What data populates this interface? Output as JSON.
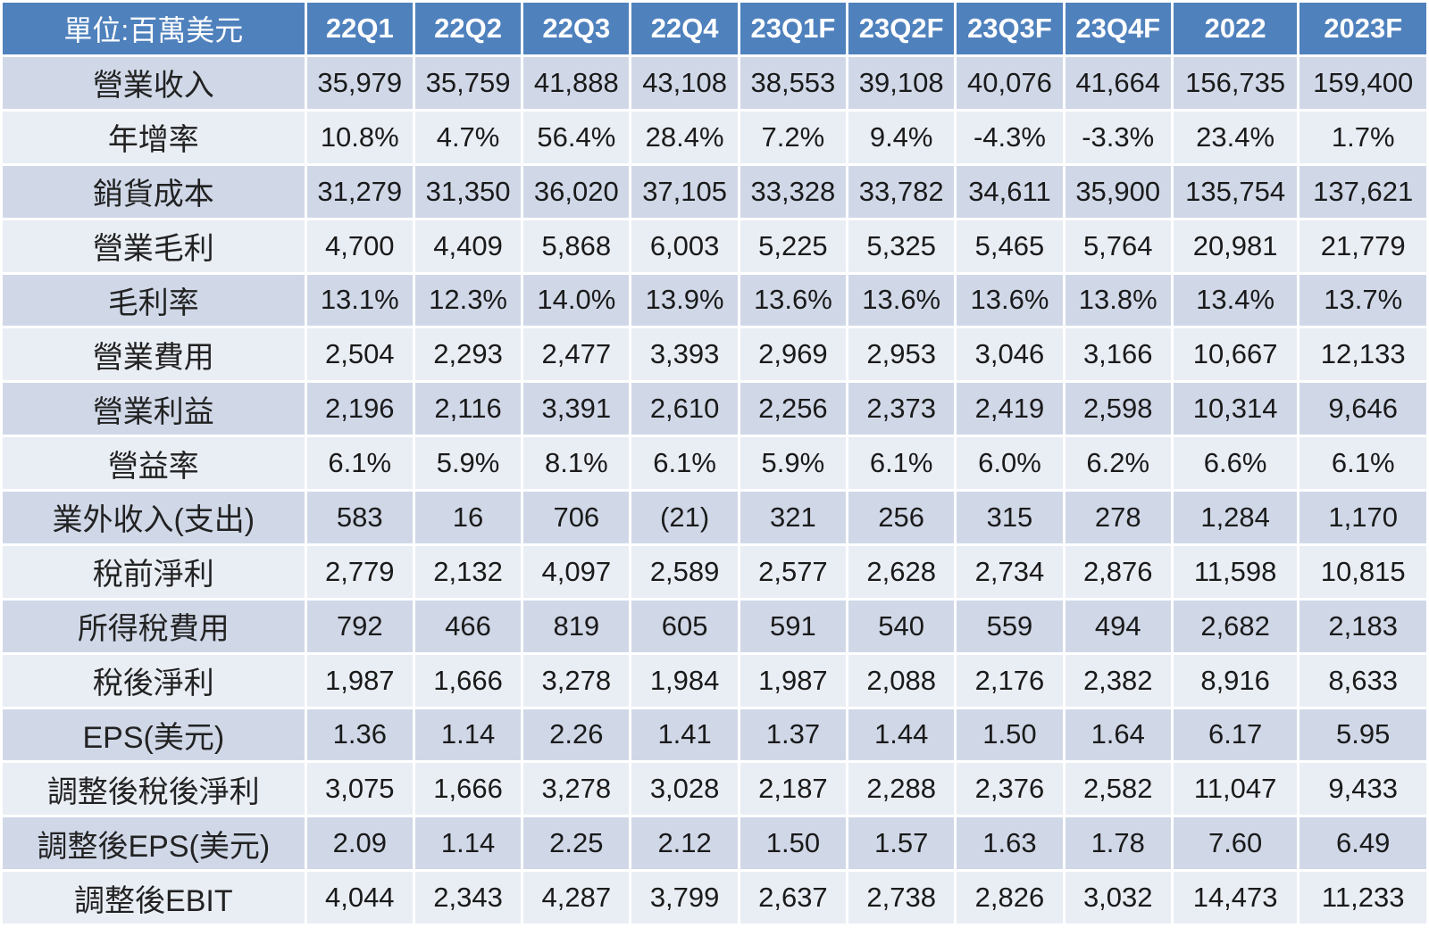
{
  "table": {
    "corner_label": "單位:百萬美元",
    "columns": [
      "22Q1",
      "22Q2",
      "22Q3",
      "22Q4",
      "23Q1F",
      "23Q2F",
      "23Q3F",
      "23Q4F",
      "2022",
      "2023F"
    ],
    "rows": [
      {
        "label": "營業收入",
        "values": [
          "35,979",
          "35,759",
          "41,888",
          "43,108",
          "38,553",
          "39,108",
          "40,076",
          "41,664",
          "156,735",
          "159,400"
        ]
      },
      {
        "label": "年增率",
        "values": [
          "10.8%",
          "4.7%",
          "56.4%",
          "28.4%",
          "7.2%",
          "9.4%",
          "-4.3%",
          "-3.3%",
          "23.4%",
          "1.7%"
        ]
      },
      {
        "label": "銷貨成本",
        "values": [
          "31,279",
          "31,350",
          "36,020",
          "37,105",
          "33,328",
          "33,782",
          "34,611",
          "35,900",
          "135,754",
          "137,621"
        ]
      },
      {
        "label": "營業毛利",
        "values": [
          "4,700",
          "4,409",
          "5,868",
          "6,003",
          "5,225",
          "5,325",
          "5,465",
          "5,764",
          "20,981",
          "21,779"
        ]
      },
      {
        "label": "毛利率",
        "values": [
          "13.1%",
          "12.3%",
          "14.0%",
          "13.9%",
          "13.6%",
          "13.6%",
          "13.6%",
          "13.8%",
          "13.4%",
          "13.7%"
        ]
      },
      {
        "label": "營業費用",
        "values": [
          "2,504",
          "2,293",
          "2,477",
          "3,393",
          "2,969",
          "2,953",
          "3,046",
          "3,166",
          "10,667",
          "12,133"
        ]
      },
      {
        "label": "營業利益",
        "values": [
          "2,196",
          "2,116",
          "3,391",
          "2,610",
          "2,256",
          "2,373",
          "2,419",
          "2,598",
          "10,314",
          "9,646"
        ]
      },
      {
        "label": "營益率",
        "values": [
          "6.1%",
          "5.9%",
          "8.1%",
          "6.1%",
          "5.9%",
          "6.1%",
          "6.0%",
          "6.2%",
          "6.6%",
          "6.1%"
        ]
      },
      {
        "label": "業外收入(支出)",
        "values": [
          "583",
          "16",
          "706",
          "(21)",
          "321",
          "256",
          "315",
          "278",
          "1,284",
          "1,170"
        ]
      },
      {
        "label": "稅前淨利",
        "values": [
          "2,779",
          "2,132",
          "4,097",
          "2,589",
          "2,577",
          "2,628",
          "2,734",
          "2,876",
          "11,598",
          "10,815"
        ]
      },
      {
        "label": "所得稅費用",
        "values": [
          "792",
          "466",
          "819",
          "605",
          "591",
          "540",
          "559",
          "494",
          "2,682",
          "2,183"
        ]
      },
      {
        "label": "稅後淨利",
        "values": [
          "1,987",
          "1,666",
          "3,278",
          "1,984",
          "1,987",
          "2,088",
          "2,176",
          "2,382",
          "8,916",
          "8,633"
        ]
      },
      {
        "label": "EPS(美元)",
        "values": [
          "1.36",
          "1.14",
          "2.26",
          "1.41",
          "1.37",
          "1.44",
          "1.50",
          "1.64",
          "6.17",
          "5.95"
        ]
      },
      {
        "label": "調整後稅後淨利",
        "values": [
          "3,075",
          "1,666",
          "3,278",
          "3,028",
          "2,187",
          "2,288",
          "2,376",
          "2,582",
          "11,047",
          "9,433"
        ]
      },
      {
        "label": "調整後EPS(美元)",
        "values": [
          "2.09",
          "1.14",
          "2.25",
          "2.12",
          "1.50",
          "1.57",
          "1.63",
          "1.78",
          "7.60",
          "6.49"
        ]
      },
      {
        "label": "調整後EBIT",
        "values": [
          "4,044",
          "2,343",
          "4,287",
          "3,799",
          "2,637",
          "2,738",
          "2,826",
          "3,032",
          "14,473",
          "11,233"
        ]
      }
    ]
  },
  "colors": {
    "header_bg": "#4f81bd",
    "row_dark": "#d0d8e8",
    "row_light": "#e9edf4"
  }
}
